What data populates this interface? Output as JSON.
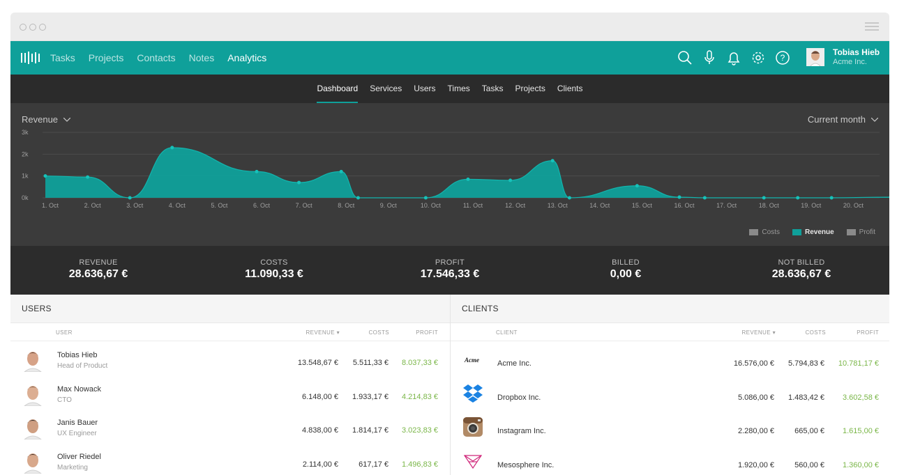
{
  "nav": {
    "items": [
      {
        "label": "Tasks",
        "active": false
      },
      {
        "label": "Projects",
        "active": false
      },
      {
        "label": "Contacts",
        "active": false
      },
      {
        "label": "Notes",
        "active": false
      },
      {
        "label": "Analytics",
        "active": true
      }
    ],
    "icons": [
      "search-icon",
      "microphone-icon",
      "bell-icon",
      "gear-icon",
      "help-icon"
    ],
    "user": {
      "name": "Tobias Hieb",
      "company": "Acme Inc."
    }
  },
  "subnav": {
    "items": [
      {
        "label": "Dashboard",
        "active": true
      },
      {
        "label": "Services",
        "active": false
      },
      {
        "label": "Users",
        "active": false
      },
      {
        "label": "Times",
        "active": false
      },
      {
        "label": "Tasks",
        "active": false
      },
      {
        "label": "Projects",
        "active": false
      },
      {
        "label": "Clients",
        "active": false
      }
    ]
  },
  "chart_panel": {
    "metric_label": "Revenue",
    "period_label": "Current month"
  },
  "chart_data": {
    "type": "area",
    "x": [
      "1. Oct",
      "2. Oct",
      "3. Oct",
      "4. Oct",
      "5. Oct",
      "6. Oct",
      "7. Oct",
      "8. Oct",
      "9. Oct",
      "10. Oct",
      "11. Oct",
      "12. Oct",
      "13. Oct",
      "14. Oct",
      "15. Oct",
      "16. Oct",
      "17. Oct",
      "18. Oct",
      "19. Oct",
      "20. Oct"
    ],
    "y_ticks": [
      "3k",
      "2k",
      "1k",
      "0k"
    ],
    "ylim": [
      0,
      3000
    ],
    "grid": true,
    "points": [
      {
        "x": 1,
        "y": 1000
      },
      {
        "x": 2,
        "y": 950
      },
      {
        "x": 3,
        "y": 0
      },
      {
        "x": 4,
        "y": 2300
      },
      {
        "x": 6,
        "y": 1200
      },
      {
        "x": 7,
        "y": 700
      },
      {
        "x": 8,
        "y": 1200
      },
      {
        "x": 8.4,
        "y": 0
      },
      {
        "x": 10,
        "y": 0
      },
      {
        "x": 11,
        "y": 850
      },
      {
        "x": 12,
        "y": 800
      },
      {
        "x": 13,
        "y": 1700
      },
      {
        "x": 13.4,
        "y": 0
      },
      {
        "x": 15,
        "y": 550
      },
      {
        "x": 16,
        "y": 30
      },
      {
        "x": 16.6,
        "y": 0
      },
      {
        "x": 18,
        "y": 0
      },
      {
        "x": 18.8,
        "y": 0
      },
      {
        "x": 19.6,
        "y": 0
      },
      {
        "x": 21,
        "y": 30
      }
    ],
    "series_color": "#0fa09a",
    "legend": [
      {
        "label": "Costs",
        "color": "#8a8a8a",
        "active": false
      },
      {
        "label": "Revenue",
        "color": "#0fa09a",
        "active": true
      },
      {
        "label": "Profit",
        "color": "#8a8a8a",
        "active": false
      }
    ],
    "legend_position": "bottom-right"
  },
  "summary": [
    {
      "label": "REVENUE",
      "value": "28.636,67 €"
    },
    {
      "label": "COSTS",
      "value": "11.090,33 €"
    },
    {
      "label": "PROFIT",
      "value": "17.546,33 €"
    },
    {
      "label": "BILLED",
      "value": "0,00 €"
    },
    {
      "label": "NOT BILLED",
      "value": "28.636,67 €"
    }
  ],
  "users_table": {
    "title": "USERS",
    "columns": {
      "name": "USER",
      "revenue": "REVENUE ▾",
      "costs": "COSTS",
      "profit": "PROFIT"
    },
    "rows": [
      {
        "name": "Tobias Hieb",
        "role": "Head of Product",
        "revenue": "13.548,67 €",
        "costs": "5.511,33 €",
        "profit": "8.037,33 €"
      },
      {
        "name": "Max Nowack",
        "role": "CTO",
        "revenue": "6.148,00 €",
        "costs": "1.933,17 €",
        "profit": "4.214,83 €"
      },
      {
        "name": "Janis Bauer",
        "role": "UX Engineer",
        "revenue": "4.838,00 €",
        "costs": "1.814,17 €",
        "profit": "3.023,83 €"
      },
      {
        "name": "Oliver Riedel",
        "role": "Marketing",
        "revenue": "2.114,00 €",
        "costs": "617,17 €",
        "profit": "1.496,83 €"
      }
    ]
  },
  "clients_table": {
    "title": "CLIENTS",
    "columns": {
      "name": "CLIENT",
      "revenue": "REVENUE ▾",
      "costs": "COSTS",
      "profit": "PROFIT"
    },
    "rows": [
      {
        "name": "Acme Inc.",
        "logo": "acme-logo",
        "logo_text": "Acme",
        "revenue": "16.576,00 €",
        "costs": "5.794,83 €",
        "profit": "10.781,17 €"
      },
      {
        "name": "Dropbox Inc.",
        "logo": "dropbox-logo",
        "revenue": "5.086,00 €",
        "costs": "1.483,42 €",
        "profit": "3.602,58 €"
      },
      {
        "name": "Instagram Inc.",
        "logo": "instagram-logo",
        "revenue": "2.280,00 €",
        "costs": "665,00 €",
        "profit": "1.615,00 €"
      },
      {
        "name": "Mesosphere Inc.",
        "logo": "mesosphere-logo",
        "revenue": "1.920,00 €",
        "costs": "560,00 €",
        "profit": "1.360,00 €"
      }
    ]
  }
}
